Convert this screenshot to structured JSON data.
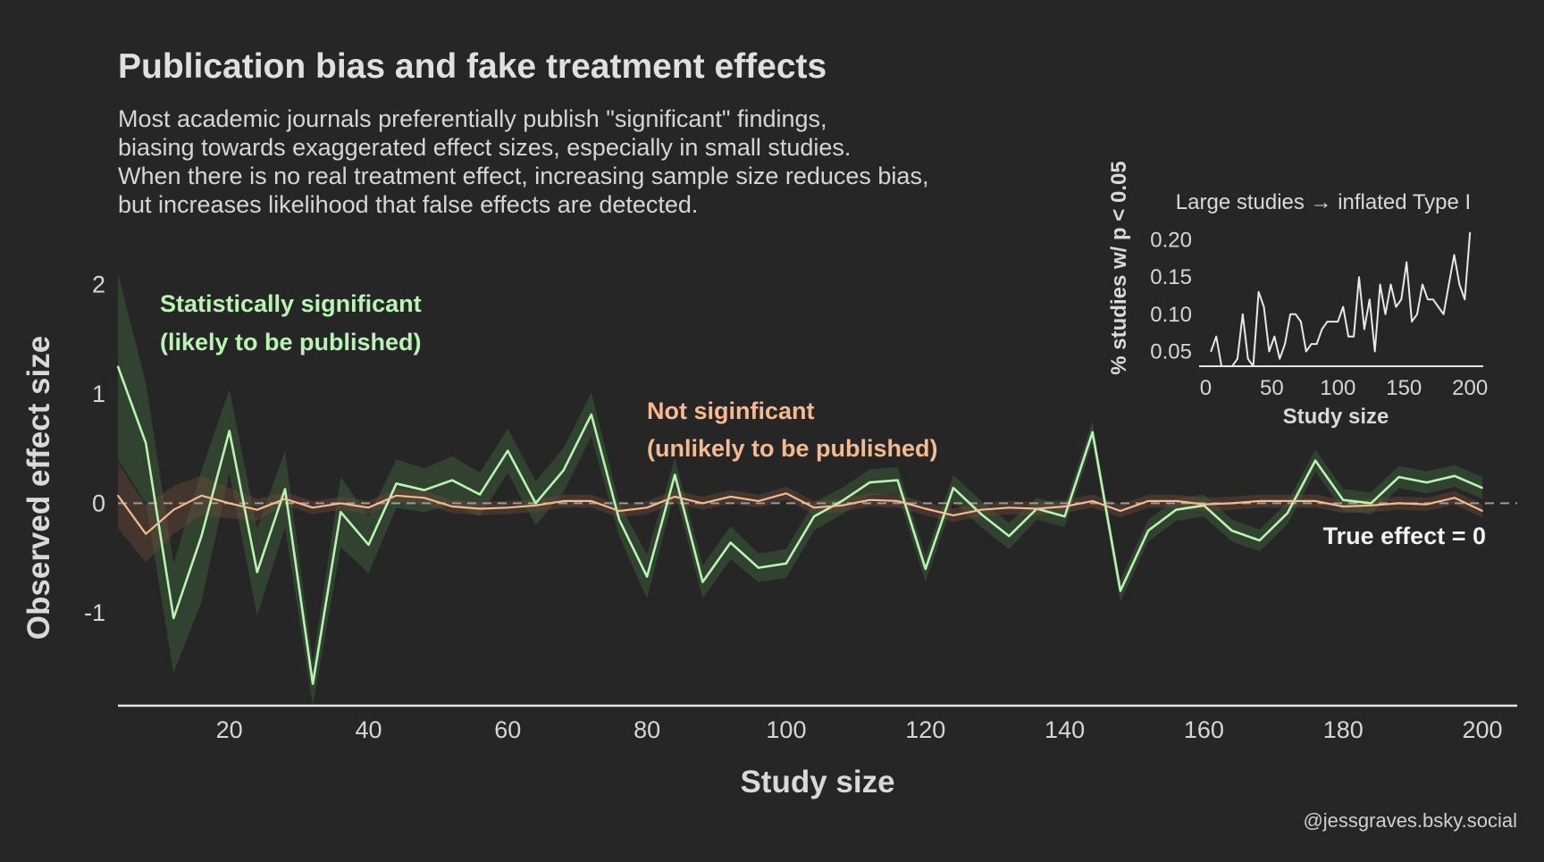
{
  "title": "Publication bias and fake treatment effects",
  "subtitle_lines": [
    "Most academic journals preferentially publish \"significant\" findings,",
    "biasing towards exaggerated effect sizes, especially in small studies.",
    "When there is no real treatment effect, increasing sample size reduces bias,",
    "but increases likelihood that false effects are detected."
  ],
  "credit": "@jessgraves.bsky.social",
  "colors": {
    "background": "#262626",
    "significant": "#b7f5b0",
    "not_significant": "#f7b98e",
    "text": "#d9d9d9",
    "reference": "#9a9a9a"
  },
  "annotations": {
    "significant_line1": "Statistically significant",
    "significant_line2": "(likely to be published)",
    "not_significant_line1": "Not siginficant",
    "not_significant_line2": "(unlikely to be published)",
    "true_effect": "True effect = 0"
  },
  "chart_data": [
    {
      "type": "line",
      "xlabel": "Study size",
      "ylabel": "Observed effect size",
      "xlim": [
        4,
        205
      ],
      "ylim": [
        -1.85,
        2.15
      ],
      "x_ticks": [
        20,
        40,
        60,
        80,
        100,
        120,
        140,
        160,
        180,
        200
      ],
      "y_ticks": [
        -1,
        0,
        1,
        2
      ],
      "grid": false,
      "reference_line": 0,
      "x": [
        4,
        8,
        12,
        16,
        20,
        24,
        28,
        32,
        36,
        40,
        44,
        48,
        52,
        56,
        60,
        64,
        68,
        72,
        76,
        80,
        84,
        88,
        92,
        96,
        100,
        104,
        108,
        112,
        116,
        120,
        124,
        128,
        132,
        136,
        140,
        144,
        148,
        152,
        156,
        160,
        164,
        168,
        172,
        176,
        180,
        184,
        188,
        192,
        196,
        200
      ],
      "series": [
        {
          "name": "Statistically significant",
          "values": [
            1.25,
            0.55,
            -1.05,
            -0.3,
            0.66,
            -0.63,
            0.13,
            -1.65,
            -0.08,
            -0.38,
            0.18,
            0.12,
            0.21,
            0.08,
            0.48,
            0.0,
            0.3,
            0.81,
            -0.15,
            -0.67,
            0.26,
            -0.72,
            -0.36,
            -0.59,
            -0.55,
            -0.12,
            0.02,
            0.19,
            0.21,
            -0.6,
            0.14,
            -0.1,
            -0.3,
            -0.05,
            -0.12,
            0.65,
            -0.8,
            -0.25,
            -0.06,
            -0.02,
            -0.25,
            -0.34,
            -0.09,
            0.39,
            0.03,
            0.0,
            0.24,
            0.19,
            0.25,
            0.14
          ],
          "band": [
            0.85,
            0.55,
            0.5,
            0.6,
            0.38,
            0.4,
            0.35,
            0.2,
            0.32,
            0.26,
            0.22,
            0.2,
            0.22,
            0.2,
            0.2,
            0.2,
            0.2,
            0.2,
            0.15,
            0.2,
            0.15,
            0.15,
            0.15,
            0.13,
            0.13,
            0.13,
            0.12,
            0.12,
            0.12,
            0.12,
            0.12,
            0.12,
            0.12,
            0.1,
            0.1,
            0.1,
            0.1,
            0.1,
            0.1,
            0.1,
            0.1,
            0.1,
            0.1,
            0.1,
            0.1,
            0.1,
            0.1,
            0.1,
            0.1,
            0.1
          ]
        },
        {
          "name": "Not siginficant",
          "values": [
            0.07,
            -0.28,
            -0.06,
            0.07,
            0.0,
            -0.06,
            0.04,
            -0.04,
            0.0,
            -0.04,
            0.07,
            0.05,
            -0.03,
            -0.05,
            -0.04,
            -0.02,
            0.02,
            0.02,
            -0.07,
            -0.04,
            0.06,
            0.0,
            0.06,
            0.02,
            0.09,
            -0.04,
            -0.02,
            0.03,
            0.02,
            -0.05,
            -0.11,
            -0.06,
            -0.04,
            -0.05,
            -0.03,
            0.02,
            -0.07,
            0.02,
            0.02,
            -0.01,
            0.0,
            0.02,
            0.02,
            0.02,
            -0.03,
            -0.02,
            0.0,
            -0.01,
            0.05,
            -0.07
          ]
        }
      ]
    },
    {
      "type": "line",
      "title": "Large studies → inflated Type I",
      "xlabel": "Study size",
      "ylabel": "% studies w/ p < 0.05",
      "xlim": [
        -5,
        210
      ],
      "ylim": [
        0.03,
        0.22
      ],
      "x_ticks": [
        0,
        50,
        100,
        150,
        200
      ],
      "y_ticks": [
        0.05,
        0.1,
        0.15,
        0.2
      ],
      "x": [
        4,
        8,
        12,
        16,
        20,
        24,
        28,
        32,
        36,
        40,
        44,
        48,
        52,
        56,
        60,
        64,
        68,
        72,
        76,
        80,
        84,
        88,
        92,
        96,
        100,
        104,
        108,
        112,
        116,
        120,
        124,
        128,
        132,
        136,
        140,
        144,
        148,
        152,
        156,
        160,
        164,
        168,
        172,
        176,
        180,
        184,
        188,
        192,
        196,
        200
      ],
      "values": [
        0.05,
        0.07,
        0.03,
        0.03,
        0.03,
        0.04,
        0.1,
        0.04,
        0.03,
        0.13,
        0.11,
        0.05,
        0.07,
        0.04,
        0.06,
        0.1,
        0.1,
        0.09,
        0.05,
        0.06,
        0.06,
        0.08,
        0.09,
        0.09,
        0.09,
        0.11,
        0.07,
        0.07,
        0.15,
        0.08,
        0.12,
        0.05,
        0.14,
        0.1,
        0.14,
        0.11,
        0.12,
        0.17,
        0.09,
        0.1,
        0.14,
        0.12,
        0.12,
        0.11,
        0.1,
        0.14,
        0.18,
        0.14,
        0.12,
        0.21
      ]
    }
  ]
}
